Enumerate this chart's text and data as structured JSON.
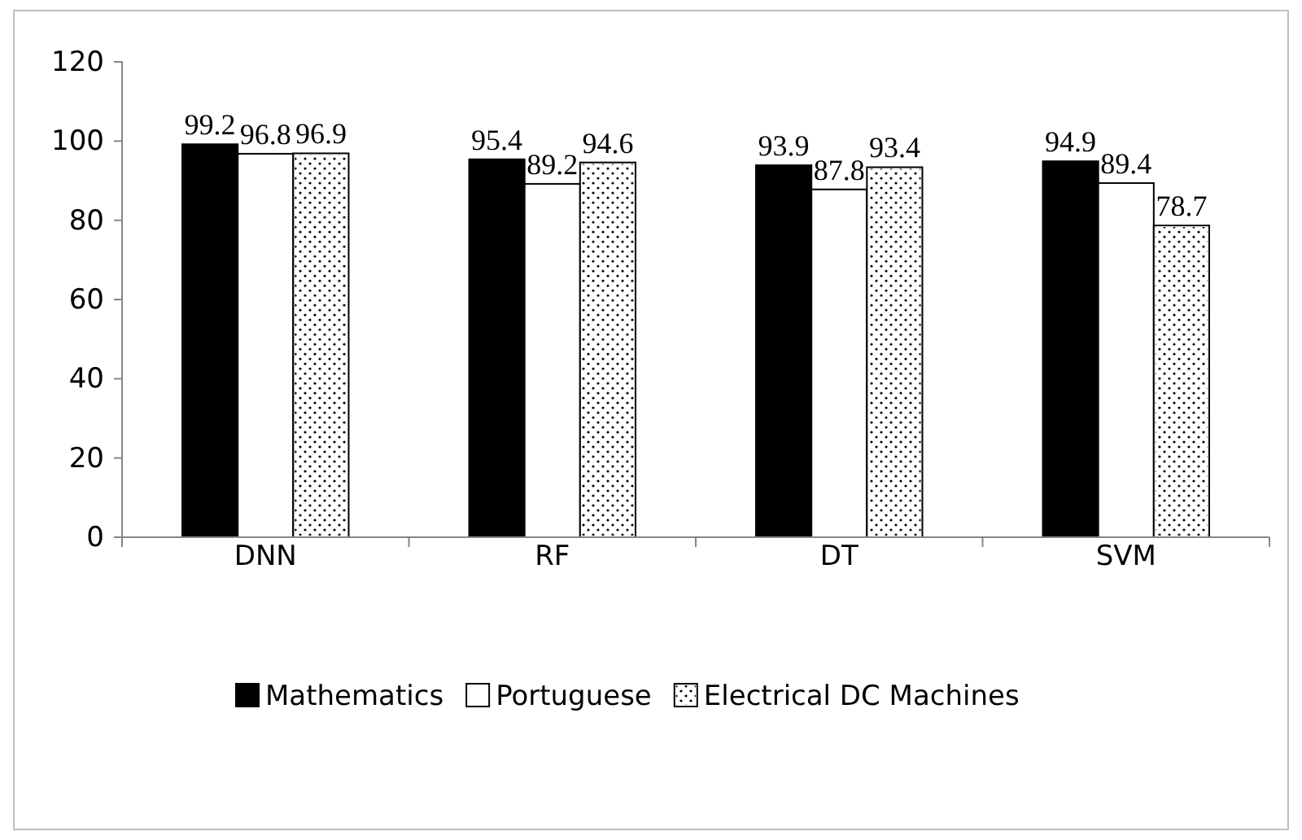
{
  "chart_data": {
    "type": "bar",
    "categories": [
      "DNN",
      "RF",
      "DT",
      "SVM"
    ],
    "series": [
      {
        "name": "Mathematics",
        "color": "#000000",
        "values": [
          99.2,
          95.4,
          93.9,
          94.9
        ]
      },
      {
        "name": "Portuguese",
        "color": "#ffffff",
        "values": [
          96.8,
          89.2,
          87.8,
          89.4
        ]
      },
      {
        "name": "Electrical DC Machines",
        "color": "#ffffff",
        "values": [
          96.9,
          94.6,
          93.4,
          78.7
        ]
      }
    ],
    "ylim": [
      0,
      120
    ],
    "yticks": [
      0,
      20,
      40,
      60,
      80,
      100,
      120
    ],
    "data_labels": true,
    "legend": "bottom",
    "grid": false
  }
}
